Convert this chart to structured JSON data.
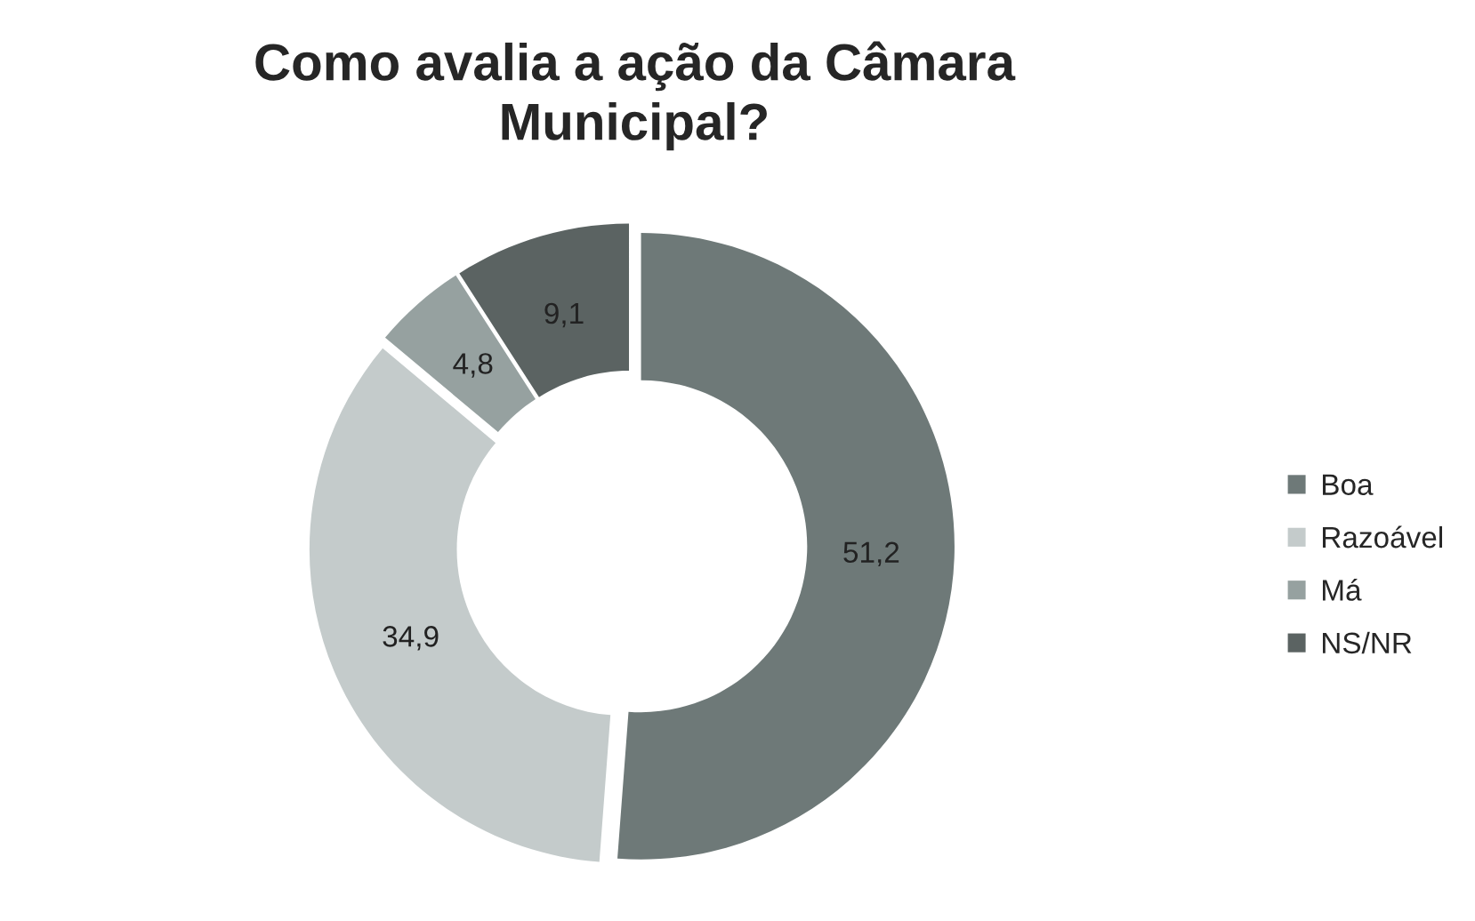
{
  "chart_data": {
    "type": "donut",
    "title": "Como avalia a ação da Câmara\nMunicipal?",
    "categories": [
      "Boa",
      "Razoável",
      "Má",
      "NS/NR"
    ],
    "values": [
      51.2,
      34.9,
      4.8,
      9.1
    ],
    "value_labels": [
      "51,2",
      "34,9",
      "4,8",
      "9,1"
    ],
    "colors": [
      "#6e7978",
      "#c4cbcb",
      "#96a1a0",
      "#5b6362"
    ],
    "legend": "right"
  }
}
